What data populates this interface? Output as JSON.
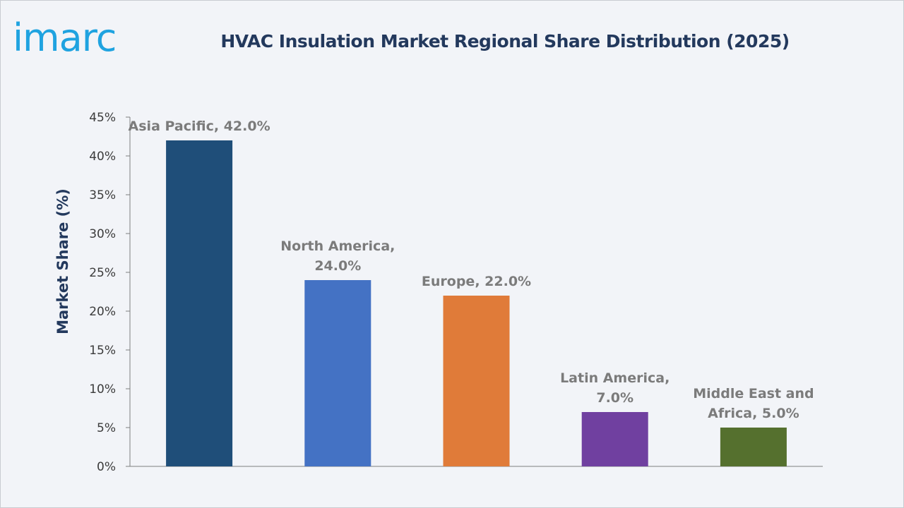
{
  "brand": {
    "logo_text": "imarc",
    "logo_color": "#1fa3e0"
  },
  "chart_data": {
    "type": "bar",
    "title": "HVAC Insulation Market Regional Share Distribution (2025)",
    "xlabel": "",
    "ylabel": "Market Share (%)",
    "categories": [
      "Asia Pacific",
      "North America",
      "Europe",
      "Latin America",
      "Middle East and Africa"
    ],
    "values": [
      42.0,
      24.0,
      22.0,
      7.0,
      5.0
    ],
    "data_labels": [
      [
        "Asia Pacific, 42.0%"
      ],
      [
        "North America,",
        "24.0%"
      ],
      [
        "Europe, 22.0%"
      ],
      [
        "Latin America,",
        "7.0%"
      ],
      [
        "Middle East and",
        "Africa, 5.0%"
      ]
    ],
    "colors": [
      "#1f4e79",
      "#4472c4",
      "#e07b39",
      "#7040a0",
      "#55702e"
    ],
    "ylim": [
      0,
      45
    ],
    "yticks": [
      0,
      5,
      10,
      15,
      20,
      25,
      30,
      35,
      40,
      45
    ],
    "ytick_labels": [
      "0%",
      "5%",
      "10%",
      "15%",
      "20%",
      "25%",
      "30%",
      "35%",
      "40%",
      "45%"
    ],
    "grid": false,
    "legend": "none"
  }
}
